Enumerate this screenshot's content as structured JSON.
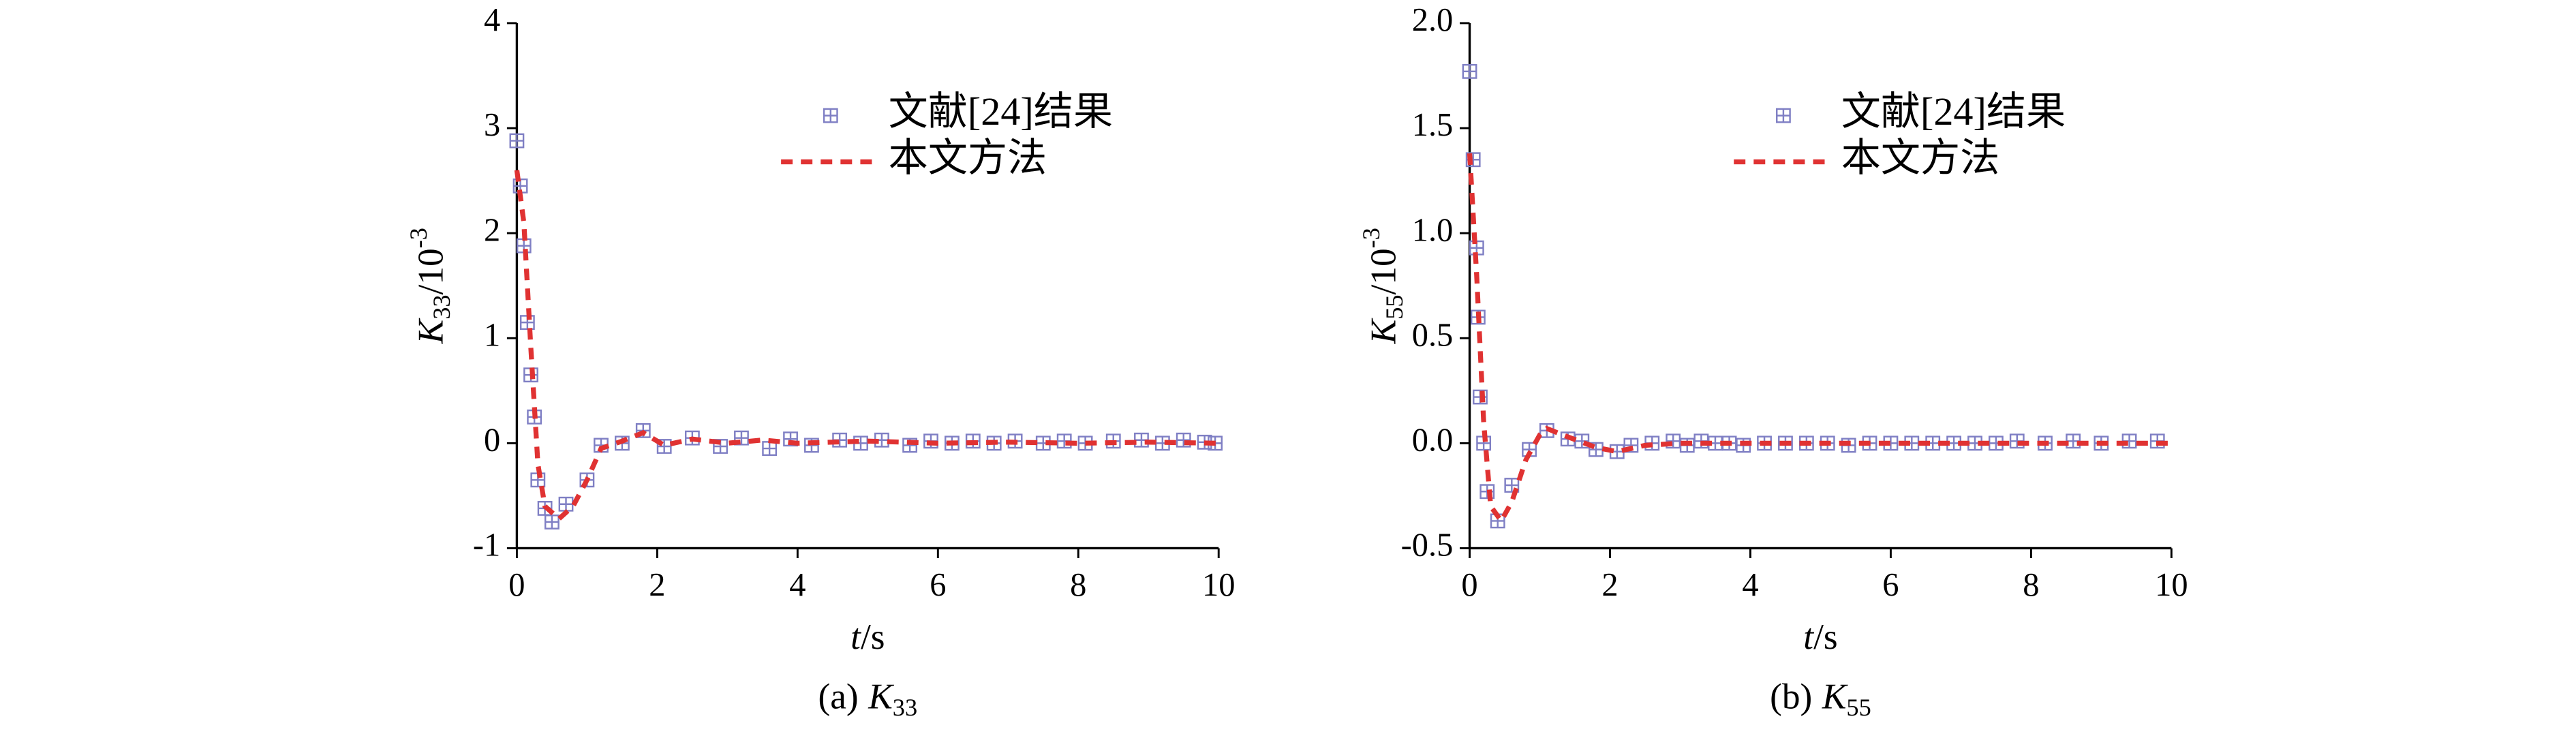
{
  "chart_data": [
    {
      "type": "line",
      "ylabel": {
        "symbol": "K",
        "subscript": "33",
        "unit": "/10",
        "exponent": "-3"
      },
      "xlabel": {
        "symbol": "t",
        "unit": "/s"
      },
      "caption": {
        "prefix": "(a)",
        "symbol": "K",
        "subscript": "33"
      },
      "xlim": [
        0,
        10
      ],
      "xticks": [
        0,
        2,
        4,
        6,
        8,
        10
      ],
      "ylim": [
        -1,
        4
      ],
      "yticks": [
        -1,
        0,
        1,
        2,
        3,
        4
      ],
      "legend": "upper right",
      "series": [
        {
          "name": "文献[24]结果",
          "color": "#7f7fc4",
          "style": "marker",
          "x": [
            0,
            0.05,
            0.1,
            0.15,
            0.2,
            0.25,
            0.3,
            0.4,
            0.5,
            0.7,
            1.0,
            1.2,
            1.5,
            1.8,
            2.1,
            2.5,
            2.9,
            3.2,
            3.6,
            3.9,
            4.2,
            4.6,
            4.9,
            5.2,
            5.6,
            5.9,
            6.2,
            6.5,
            6.8,
            7.1,
            7.5,
            7.8,
            8.1,
            8.5,
            8.9,
            9.2,
            9.5,
            9.8,
            9.95
          ],
          "values": [
            2.88,
            2.45,
            1.88,
            1.15,
            0.65,
            0.25,
            -0.35,
            -0.62,
            -0.75,
            -0.58,
            -0.35,
            -0.02,
            0.0,
            0.12,
            -0.03,
            0.05,
            -0.03,
            0.05,
            -0.05,
            0.04,
            -0.02,
            0.03,
            0.0,
            0.03,
            -0.02,
            0.02,
            0.0,
            0.02,
            0.0,
            0.02,
            0.0,
            0.02,
            0.0,
            0.02,
            0.03,
            0.0,
            0.03,
            0.01,
            0.0
          ]
        },
        {
          "name": "本文方法",
          "color": "#e03232",
          "style": "dashed",
          "x": [
            0,
            0.1,
            0.2,
            0.3,
            0.4,
            0.6,
            0.8,
            1.0,
            1.2,
            1.5,
            1.8,
            2.1,
            2.5,
            3,
            3.5,
            4,
            5,
            6,
            7,
            8,
            9,
            10
          ],
          "values": [
            2.6,
            2.1,
            0.9,
            -0.2,
            -0.6,
            -0.72,
            -0.6,
            -0.35,
            -0.05,
            0.02,
            0.1,
            -0.02,
            0.04,
            0.0,
            0.03,
            0.0,
            0.02,
            0.0,
            0.01,
            0.0,
            0.01,
            0.0
          ]
        }
      ]
    },
    {
      "type": "line",
      "ylabel": {
        "symbol": "K",
        "subscript": "55",
        "unit": "/10",
        "exponent": "-3"
      },
      "xlabel": {
        "symbol": "t",
        "unit": "/s"
      },
      "caption": {
        "prefix": "(b)",
        "symbol": "K",
        "subscript": "55"
      },
      "xlim": [
        0,
        10
      ],
      "xticks": [
        0,
        2,
        4,
        6,
        8,
        10
      ],
      "ylim": [
        -0.5,
        2.0
      ],
      "yticks": [
        -0.5,
        {
          "value": 0,
          "label": "0.0"
        },
        0.5,
        {
          "value": 1,
          "label": "1.0"
        },
        1.5,
        {
          "value": 2,
          "label": "2.0"
        }
      ],
      "legend": "upper right",
      "series": [
        {
          "name": "文献[24]结果",
          "color": "#7f7fc4",
          "style": "marker",
          "x": [
            0,
            0.05,
            0.1,
            0.12,
            0.15,
            0.2,
            0.25,
            0.4,
            0.6,
            0.85,
            1.1,
            1.4,
            1.6,
            1.8,
            2.1,
            2.3,
            2.6,
            2.9,
            3.1,
            3.3,
            3.5,
            3.7,
            3.9,
            4.2,
            4.5,
            4.8,
            5.1,
            5.4,
            5.7,
            6.0,
            6.3,
            6.6,
            6.9,
            7.2,
            7.5,
            7.8,
            8.2,
            8.6,
            9.0,
            9.4,
            9.8
          ],
          "values": [
            1.77,
            1.35,
            0.93,
            0.6,
            0.22,
            0.0,
            -0.23,
            -0.37,
            -0.2,
            -0.03,
            0.06,
            0.02,
            0.01,
            -0.03,
            -0.04,
            -0.01,
            0.0,
            0.01,
            -0.01,
            0.01,
            0.0,
            0.0,
            -0.01,
            0.0,
            0.0,
            0.0,
            0.0,
            -0.01,
            0.0,
            0.0,
            0.0,
            0.0,
            0.0,
            0.0,
            0.0,
            0.01,
            0.0,
            0.01,
            0.0,
            0.01,
            0.01
          ]
        },
        {
          "name": "本文方法",
          "color": "#e03232",
          "style": "dashed",
          "x": [
            0,
            0.1,
            0.2,
            0.3,
            0.45,
            0.6,
            0.8,
            1.0,
            1.1,
            1.4,
            1.8,
            2.1,
            2.5,
            3,
            4,
            5,
            6,
            7,
            8,
            9,
            10
          ],
          "values": [
            1.38,
            0.8,
            0.1,
            -0.3,
            -0.37,
            -0.28,
            -0.08,
            0.04,
            0.07,
            0.03,
            -0.02,
            -0.04,
            -0.01,
            0.0,
            0.0,
            0.0,
            0.0,
            0.0,
            0.0,
            0.0,
            0.0
          ]
        }
      ]
    }
  ]
}
